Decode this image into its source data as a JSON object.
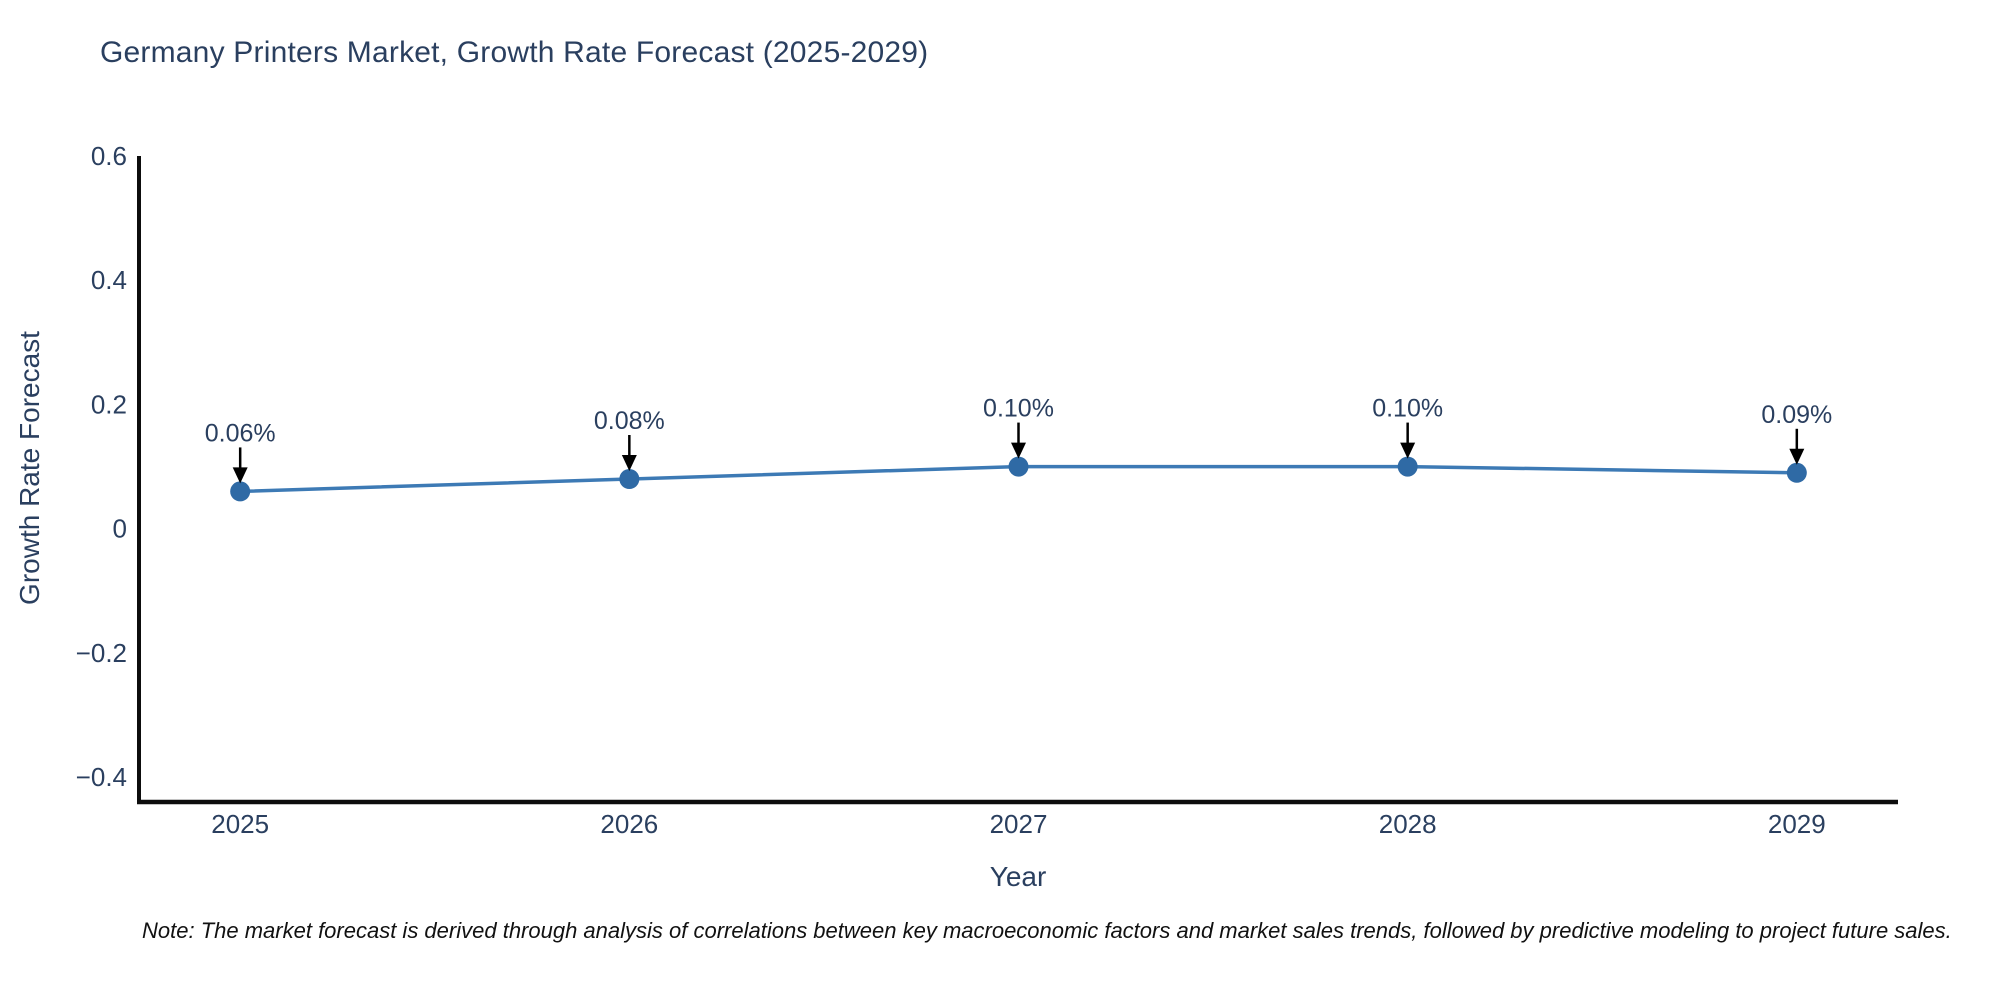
{
  "chart_data": {
    "type": "line",
    "title": "Germany Printers Market, Growth Rate Forecast (2025-2029)",
    "xlabel": "Year",
    "ylabel": "Growth Rate Forecast",
    "x": [
      2025,
      2026,
      2027,
      2028,
      2029
    ],
    "series": [
      {
        "name": "Growth Rate Forecast",
        "values": [
          0.06,
          0.08,
          0.1,
          0.1,
          0.09
        ]
      }
    ],
    "point_labels": [
      "0.06%",
      "0.08%",
      "0.10%",
      "0.10%",
      "0.09%"
    ],
    "xtick_labels": [
      "2025",
      "2026",
      "2027",
      "2028",
      "2029"
    ],
    "ytick_values": [
      0.6,
      0.4,
      0.2,
      0,
      -0.2,
      -0.4
    ],
    "ytick_labels": [
      "0.6",
      "0.4",
      "0.2",
      "0",
      "−0.2",
      "−0.4"
    ],
    "ylim": [
      -0.44,
      0.6
    ],
    "xlim": [
      2024.74,
      2029.26
    ],
    "grid": false,
    "legend_position": "none",
    "annotation_arrows": true
  },
  "note_text": "Note: The market forecast is derived through analysis of correlations between key macroeconomic factors and market sales trends, followed by predictive modeling to project future sales.",
  "colors": {
    "title_text": "#2a3f5f",
    "tick_text": "#2a3f5f",
    "axis_spine": "#0d0d0d",
    "line": "#3d7ab5",
    "marker": "#2f6aa5",
    "arrow": "#000000",
    "note_text": "#111111",
    "background": "#ffffff"
  }
}
